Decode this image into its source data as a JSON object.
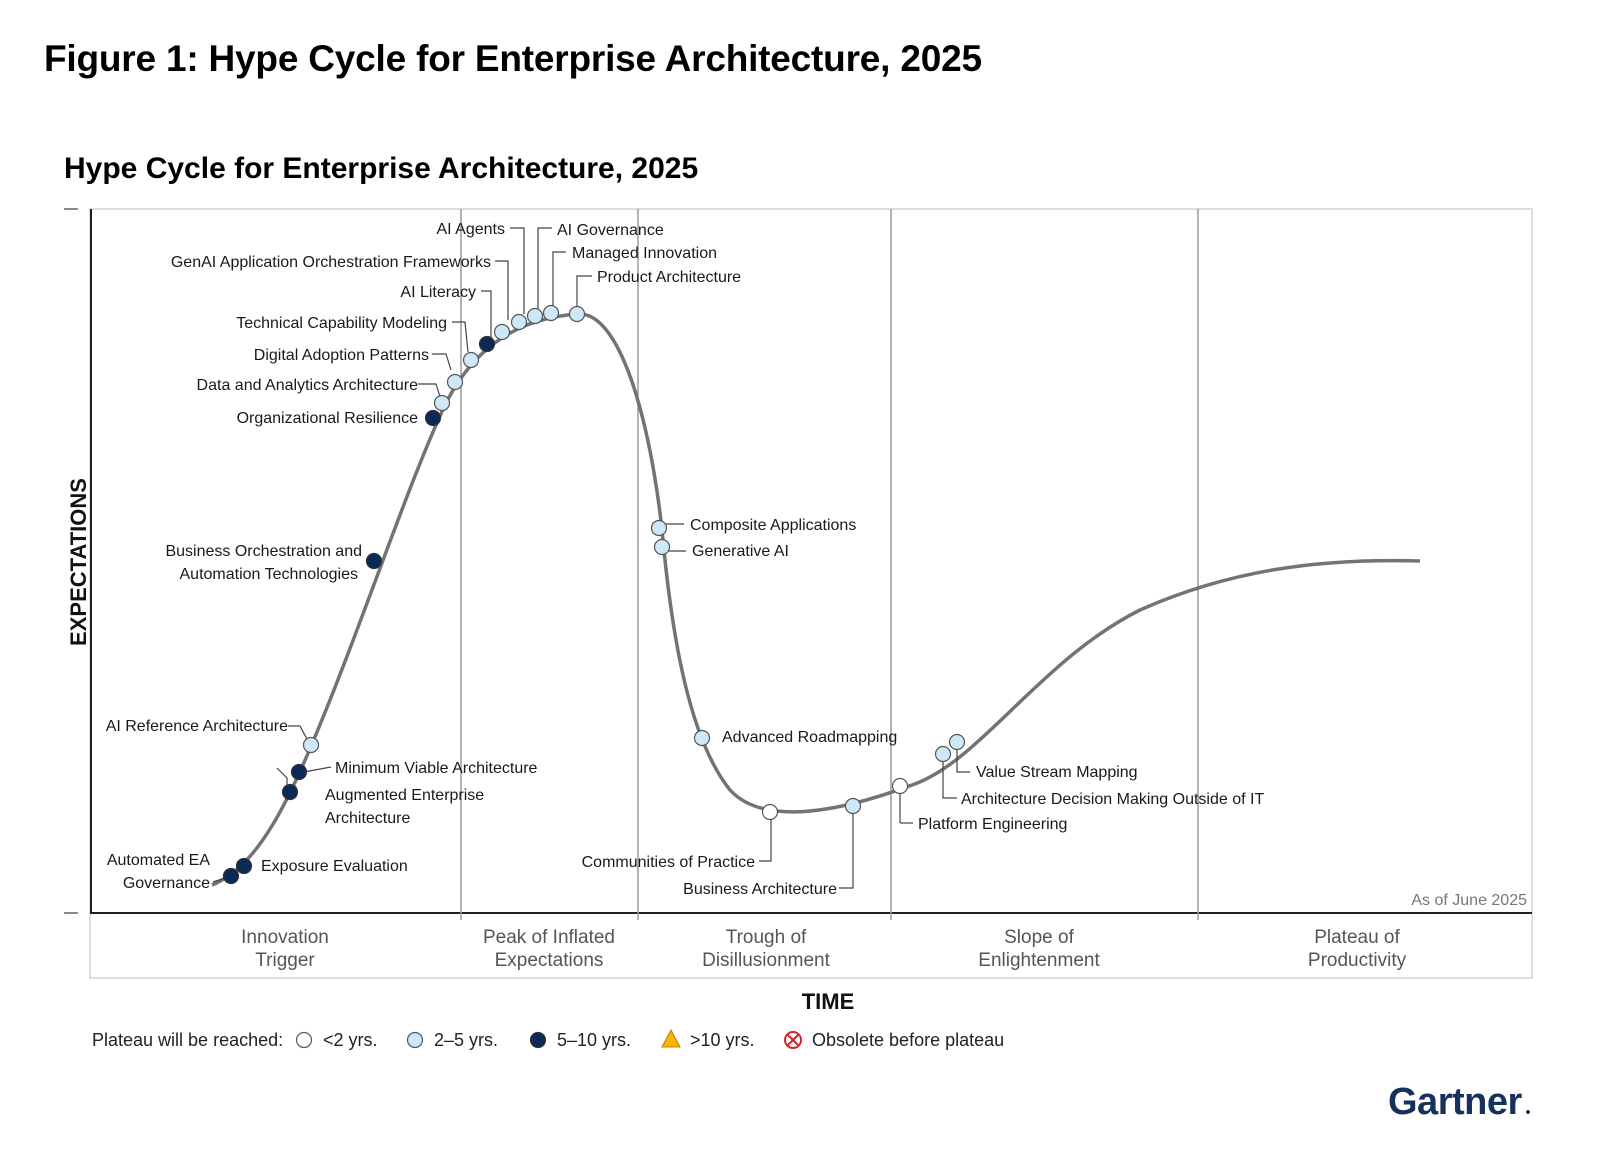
{
  "figure_title": "Figure 1: Hype Cycle for Enterprise Architecture, 2025",
  "chart_title": "Hype Cycle for Enterprise Architecture, 2025",
  "y_axis_label": "EXPECTATIONS",
  "x_axis_label": "TIME",
  "as_of": "As of June 2025",
  "phases": [
    {
      "line1": "Innovation",
      "line2": "Trigger"
    },
    {
      "line1": "Peak of Inflated",
      "line2": "Expectations"
    },
    {
      "line1": "Trough of",
      "line2": "Disillusionment"
    },
    {
      "line1": "Slope of",
      "line2": "Enlightenment"
    },
    {
      "line1": "Plateau of",
      "line2": "Productivity"
    }
  ],
  "legend": {
    "label": "Plateau will be reached:",
    "items": [
      {
        "key": "lt2",
        "label": "<2 yrs."
      },
      {
        "key": "2to5",
        "label": "2–5 yrs."
      },
      {
        "key": "5to10",
        "label": "5–10 yrs."
      },
      {
        "key": "gt10",
        "label": ">10 yrs."
      },
      {
        "key": "obsolete",
        "label": "Obsolete before plateau"
      }
    ]
  },
  "colors": {
    "lt2": "#ffffff",
    "2to5": "#cde8f6",
    "5to10": "#0b2a55",
    "gt10": "#f5b400",
    "obsolete": "#d6262d",
    "curve": "#707070",
    "brand": "#16325c"
  },
  "brand": "Gartner",
  "technologies": [
    {
      "name": "Automated EA Governance",
      "lines": [
        "Automated EA",
        "Governance"
      ],
      "plateau": "5to10"
    },
    {
      "name": "Exposure Evaluation",
      "lines": [
        "Exposure Evaluation"
      ],
      "plateau": "5to10"
    },
    {
      "name": "Augmented Enterprise Architecture",
      "lines": [
        "Augmented Enterprise",
        "Architecture"
      ],
      "plateau": "5to10"
    },
    {
      "name": "Minimum Viable Architecture",
      "lines": [
        "Minimum Viable Architecture"
      ],
      "plateau": "5to10"
    },
    {
      "name": "AI Reference Architecture",
      "lines": [
        "AI Reference Architecture"
      ],
      "plateau": "2to5"
    },
    {
      "name": "Business Orchestration and Automation Technologies",
      "lines": [
        "Business Orchestration and",
        "Automation Technologies"
      ],
      "plateau": "5to10"
    },
    {
      "name": "Organizational Resilience",
      "lines": [
        "Organizational Resilience"
      ],
      "plateau": "5to10"
    },
    {
      "name": "Data and Analytics Architecture",
      "lines": [
        "Data and Analytics Architecture"
      ],
      "plateau": "2to5"
    },
    {
      "name": "Digital Adoption Patterns",
      "lines": [
        "Digital Adoption Patterns"
      ],
      "plateau": "2to5"
    },
    {
      "name": "Technical Capability Modeling",
      "lines": [
        "Technical Capability Modeling"
      ],
      "plateau": "2to5"
    },
    {
      "name": "AI Literacy",
      "lines": [
        "AI Literacy"
      ],
      "plateau": "5to10"
    },
    {
      "name": "GenAI Application Orchestration Frameworks",
      "lines": [
        "GenAI Application Orchestration Frameworks"
      ],
      "plateau": "2to5"
    },
    {
      "name": "AI Agents",
      "lines": [
        "AI Agents"
      ],
      "plateau": "2to5"
    },
    {
      "name": "AI Governance",
      "lines": [
        "AI Governance"
      ],
      "plateau": "2to5"
    },
    {
      "name": "Managed Innovation",
      "lines": [
        "Managed Innovation"
      ],
      "plateau": "2to5"
    },
    {
      "name": "Product Architecture",
      "lines": [
        "Product Architecture"
      ],
      "plateau": "2to5"
    },
    {
      "name": "Composite Applications",
      "lines": [
        "Composite Applications"
      ],
      "plateau": "2to5"
    },
    {
      "name": "Generative AI",
      "lines": [
        "Generative AI"
      ],
      "plateau": "2to5"
    },
    {
      "name": "Advanced Roadmapping",
      "lines": [
        "Advanced Roadmapping"
      ],
      "plateau": "2to5"
    },
    {
      "name": "Communities of Practice",
      "lines": [
        "Communities of Practice"
      ],
      "plateau": "lt2"
    },
    {
      "name": "Business Architecture",
      "lines": [
        "Business Architecture"
      ],
      "plateau": "2to5"
    },
    {
      "name": "Platform Engineering",
      "lines": [
        "Platform Engineering"
      ],
      "plateau": "lt2"
    },
    {
      "name": "Architecture Decision Making Outside of IT",
      "lines": [
        "Architecture Decision Making Outside of IT"
      ],
      "plateau": "2to5"
    },
    {
      "name": "Value Stream Mapping",
      "lines": [
        "Value Stream Mapping"
      ],
      "plateau": "2to5"
    }
  ]
}
